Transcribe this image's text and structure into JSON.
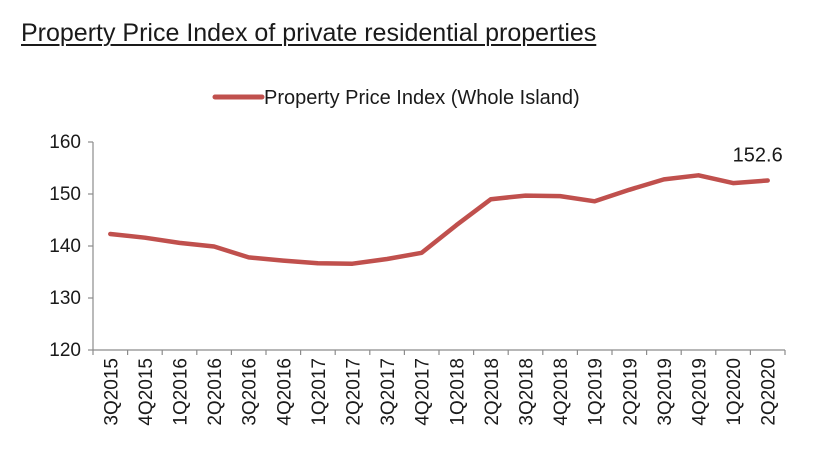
{
  "chart_data": {
    "type": "line",
    "title": "Property Price Index of private residential properties",
    "categories": [
      "3Q2015",
      "4Q2015",
      "1Q2016",
      "2Q2016",
      "3Q2016",
      "4Q2016",
      "1Q2017",
      "2Q2017",
      "3Q2017",
      "4Q2017",
      "1Q2018",
      "2Q2018",
      "3Q2018",
      "4Q2018",
      "1Q2019",
      "2Q2019",
      "3Q2019",
      "4Q2019",
      "1Q2020",
      "2Q2020"
    ],
    "series": [
      {
        "name": "Property Price Index (Whole Island)",
        "color": "#c0504d",
        "values": [
          142.3,
          141.6,
          140.6,
          139.9,
          137.8,
          137.2,
          136.7,
          136.6,
          137.5,
          138.7,
          144.0,
          149.0,
          149.7,
          149.6,
          148.6,
          150.8,
          152.8,
          153.6,
          152.1,
          152.6
        ]
      }
    ],
    "yticks": [
      "120",
      "130",
      "140",
      "150",
      "160"
    ],
    "ylim": [
      120,
      160
    ],
    "xlabel": "",
    "ylabel": "",
    "grid": false,
    "legend_position": "top",
    "annotations": [
      {
        "label": "152.6",
        "category": "2Q2020"
      }
    ]
  }
}
